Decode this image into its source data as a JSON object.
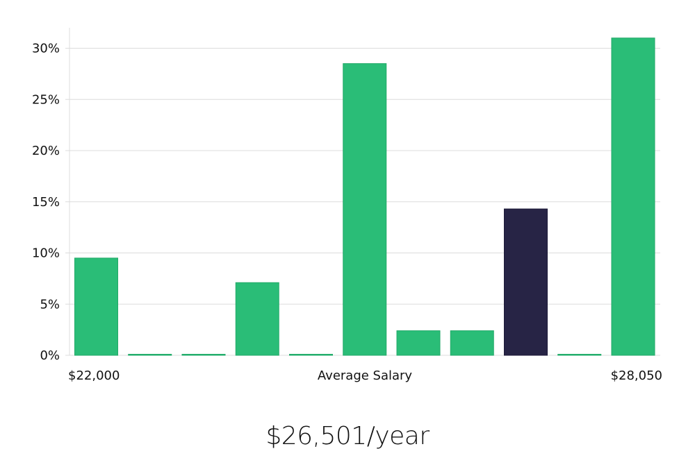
{
  "chart_data": {
    "type": "bar",
    "values": [
      9.5,
      0,
      0,
      7.1,
      0,
      28.5,
      2.4,
      2.4,
      14.3,
      0,
      31.0
    ],
    "highlight_index": 8,
    "ylim": [
      0,
      32
    ],
    "yticks": [
      0,
      5,
      10,
      15,
      20,
      25,
      30
    ],
    "ytick_labels": [
      "0%",
      "5%",
      "10%",
      "15%",
      "20%",
      "25%",
      "30%"
    ],
    "x_min_label": "$22,000",
    "xlabel": "Average Salary",
    "x_max_label": "$28,050",
    "grid": true
  },
  "colors": {
    "bar": "#2abd77",
    "bar_highlight": "#272445",
    "gridline": "#dcdcdc"
  },
  "summary": {
    "salary": "$26,501/year"
  }
}
